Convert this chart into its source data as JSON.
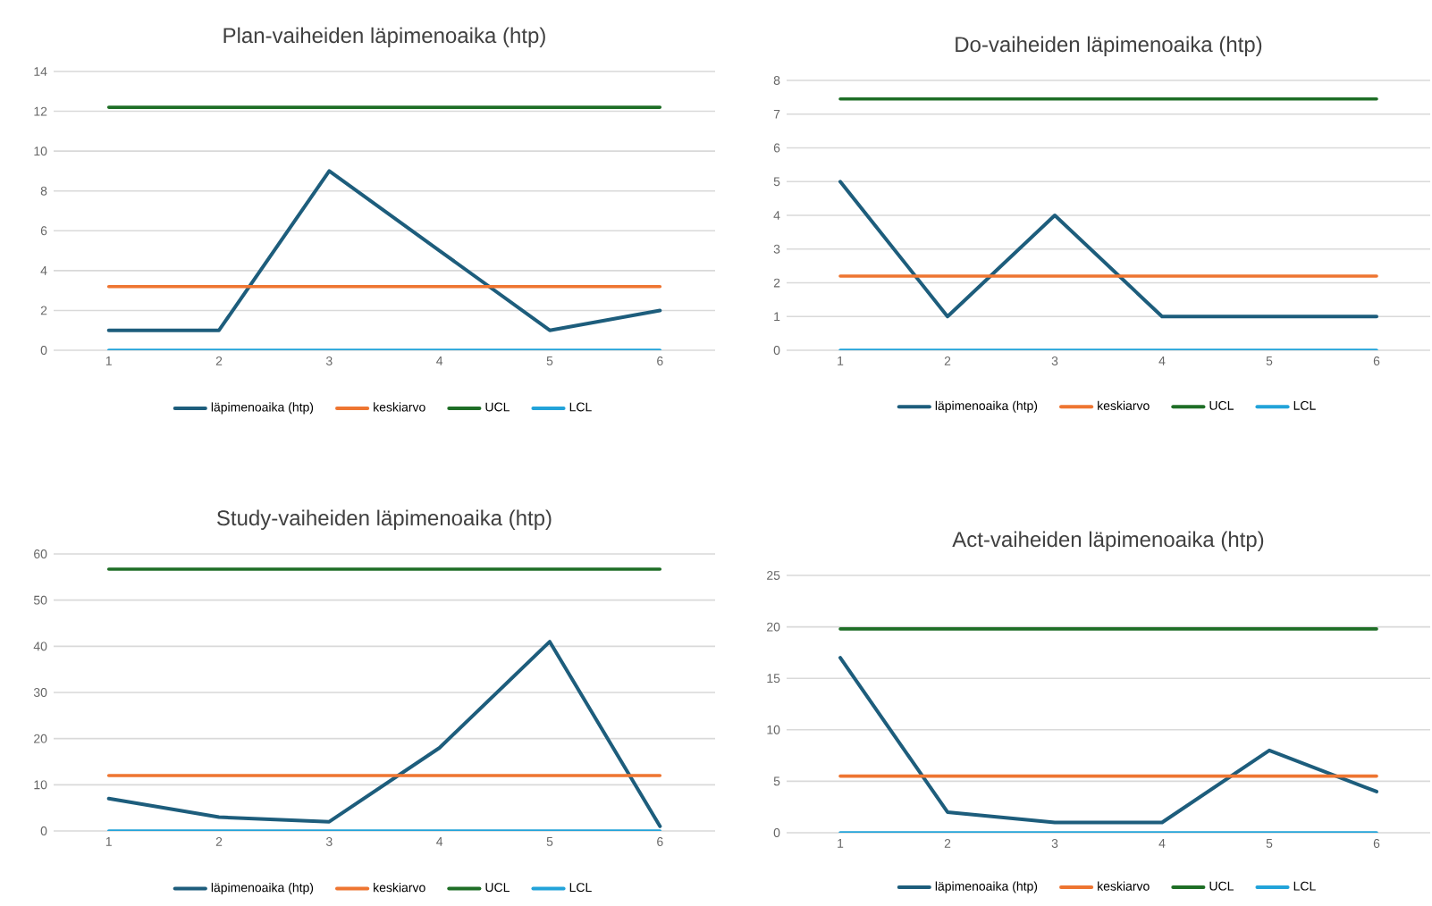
{
  "chart_data": [
    {
      "type": "line",
      "title": "Plan-vaiheiden läpimenoaika (htp)",
      "categories": [
        "1",
        "2",
        "3",
        "4",
        "5",
        "6"
      ],
      "ylim": [
        0,
        14
      ],
      "yticks": [
        0,
        2,
        4,
        6,
        8,
        10,
        12,
        14
      ],
      "grid": "y",
      "legend": "bottom",
      "marker": "none",
      "line_style": "solid",
      "series": [
        {
          "name": "läpimenoaika (htp)",
          "color": "#1d5d7c",
          "values": [
            1,
            1,
            9,
            5,
            1,
            2
          ]
        },
        {
          "name": "keskiarvo",
          "color": "#ee7531",
          "values": [
            3.2,
            3.2,
            3.2,
            3.2,
            3.2,
            3.2
          ]
        },
        {
          "name": "UCL",
          "color": "#1e6e26",
          "values": [
            12.2,
            12.2,
            12.2,
            12.2,
            12.2,
            12.2
          ]
        },
        {
          "name": "LCL",
          "color": "#22a3d9",
          "values": [
            0,
            0,
            0,
            0,
            0,
            0
          ]
        }
      ]
    },
    {
      "type": "line",
      "title": "Do-vaiheiden läpimenoaika (htp)",
      "categories": [
        "1",
        "2",
        "3",
        "4",
        "5",
        "6"
      ],
      "ylim": [
        0,
        8
      ],
      "yticks": [
        0,
        1,
        2,
        3,
        4,
        5,
        6,
        7,
        8
      ],
      "grid": "y",
      "legend": "bottom",
      "marker": "none",
      "line_style": "solid",
      "series": [
        {
          "name": "läpimenoaika (htp)",
          "color": "#1d5d7c",
          "values": [
            5,
            1,
            4,
            1,
            1,
            1
          ]
        },
        {
          "name": "keskiarvo",
          "color": "#ee7531",
          "values": [
            2.2,
            2.2,
            2.2,
            2.2,
            2.2,
            2.2
          ]
        },
        {
          "name": "UCL",
          "color": "#1e6e26",
          "values": [
            7.45,
            7.45,
            7.45,
            7.45,
            7.45,
            7.45
          ]
        },
        {
          "name": "LCL",
          "color": "#22a3d9",
          "values": [
            0,
            0,
            0,
            0,
            0,
            0
          ]
        }
      ]
    },
    {
      "type": "line",
      "title": "Study-vaiheiden läpimenoaika (htp)",
      "categories": [
        "1",
        "2",
        "3",
        "4",
        "5",
        "6"
      ],
      "ylim": [
        0,
        60
      ],
      "yticks": [
        0,
        10,
        20,
        30,
        40,
        50,
        60
      ],
      "grid": "y",
      "legend": "bottom",
      "marker": "none",
      "line_style": "solid",
      "series": [
        {
          "name": "läpimenoaika (htp)",
          "color": "#1d5d7c",
          "values": [
            7,
            3,
            2,
            18,
            41,
            1
          ]
        },
        {
          "name": "keskiarvo",
          "color": "#ee7531",
          "values": [
            12,
            12,
            12,
            12,
            12,
            12
          ]
        },
        {
          "name": "UCL",
          "color": "#1e6e26",
          "values": [
            56.7,
            56.7,
            56.7,
            56.7,
            56.7,
            56.7
          ]
        },
        {
          "name": "LCL",
          "color": "#22a3d9",
          "values": [
            0,
            0,
            0,
            0,
            0,
            0
          ]
        }
      ]
    },
    {
      "type": "line",
      "title": "Act-vaiheiden läpimenoaika (htp)",
      "categories": [
        "1",
        "2",
        "3",
        "4",
        "5",
        "6"
      ],
      "ylim": [
        0,
        25
      ],
      "yticks": [
        0,
        5,
        10,
        15,
        20,
        25
      ],
      "grid": "y",
      "legend": "bottom",
      "marker": "none",
      "line_style": "solid",
      "series": [
        {
          "name": "läpimenoaika (htp)",
          "color": "#1d5d7c",
          "values": [
            17,
            2,
            1,
            1,
            8,
            4
          ]
        },
        {
          "name": "keskiarvo",
          "color": "#ee7531",
          "values": [
            5.5,
            5.5,
            5.5,
            5.5,
            5.5,
            5.5
          ]
        },
        {
          "name": "UCL",
          "color": "#1e6e26",
          "values": [
            19.8,
            19.8,
            19.8,
            19.8,
            19.8,
            19.8
          ]
        },
        {
          "name": "LCL",
          "color": "#22a3d9",
          "values": [
            0,
            0,
            0,
            0,
            0,
            0
          ]
        }
      ]
    }
  ]
}
